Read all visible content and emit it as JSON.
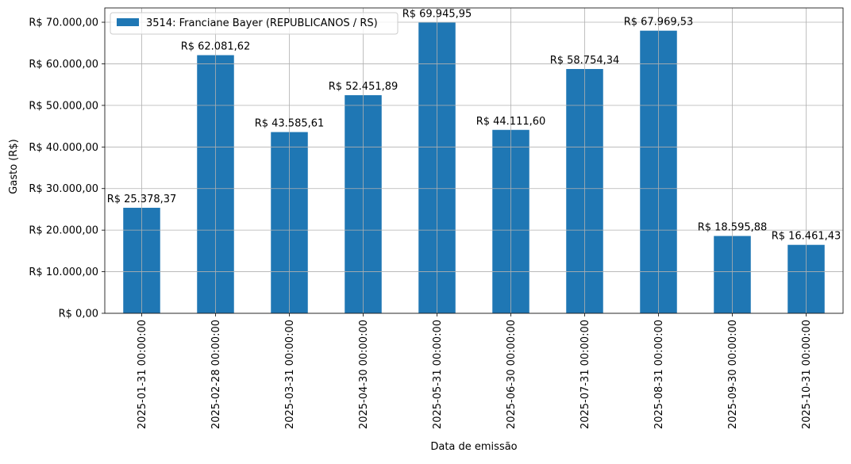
{
  "chart_data": {
    "type": "bar",
    "xlabel": "Data de emissão",
    "ylabel": "Gasto (R$)",
    "categories": [
      "2025-01-31 00:00:00",
      "2025-02-28 00:00:00",
      "2025-03-31 00:00:00",
      "2025-04-30 00:00:00",
      "2025-05-31 00:00:00",
      "2025-06-30 00:00:00",
      "2025-07-31 00:00:00",
      "2025-08-31 00:00:00",
      "2025-09-30 00:00:00",
      "2025-10-31 00:00:00"
    ],
    "series": [
      {
        "name": "3514: Franciane Bayer (REPUBLICANOS / RS)",
        "color": "#1f77b4",
        "values": [
          25378.37,
          62081.62,
          43585.61,
          52451.89,
          69945.95,
          44111.6,
          58754.34,
          67969.53,
          18595.88,
          16461.43
        ],
        "labels": [
          "R$ 25.378,37",
          "R$ 62.081,62",
          "R$ 43.585,61",
          "R$ 52.451,89",
          "R$ 69.945,95",
          "R$ 44.111,60",
          "R$ 58.754,34",
          "R$ 67.969,53",
          "R$ 18.595,88",
          "R$ 16.461,43"
        ]
      }
    ],
    "ylim": [
      0,
      73440
    ],
    "yticks": [
      0,
      10000,
      20000,
      30000,
      40000,
      50000,
      60000,
      70000
    ],
    "ytick_labels": [
      "R$ 0,00",
      "R$ 10.000,00",
      "R$ 20.000,00",
      "R$ 30.000,00",
      "R$ 40.000,00",
      "R$ 50.000,00",
      "R$ 60.000,00",
      "R$ 70.000,00"
    ],
    "grid": true,
    "legend_position": "top-left"
  }
}
